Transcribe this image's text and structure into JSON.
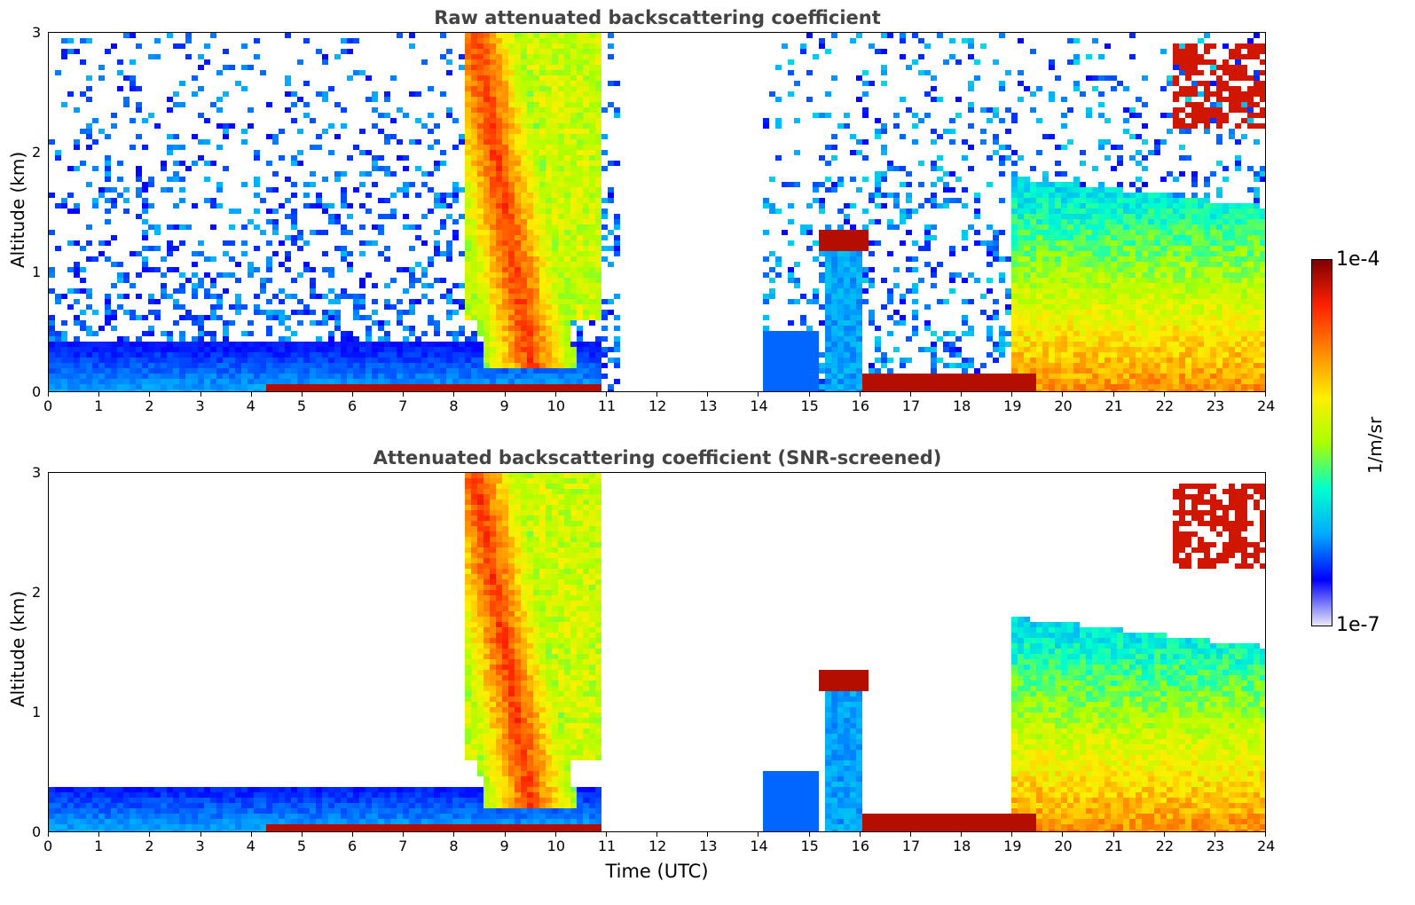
{
  "chart_data": [
    {
      "type": "heatmap",
      "title": "Raw attenuated backscattering coefficient",
      "xlabel": "",
      "ylabel": "Altitude (km)",
      "xlim": [
        0,
        24
      ],
      "ylim": [
        0,
        3
      ],
      "x_ticks": [
        "0",
        "1",
        "2",
        "3",
        "4",
        "5",
        "6",
        "7",
        "8",
        "9",
        "10",
        "11",
        "12",
        "13",
        "14",
        "15",
        "16",
        "17",
        "18",
        "19",
        "20",
        "21",
        "22",
        "23",
        "24"
      ],
      "y_ticks": [
        "0",
        "1",
        "2",
        "3"
      ],
      "data_gap_hours": [
        11.3,
        14.1
      ],
      "features": [
        {
          "desc": "surface layer",
          "x": [
            4.3,
            10.9
          ],
          "y": [
            0.0,
            0.1
          ],
          "level": "high"
        },
        {
          "desc": "falling streak",
          "x": [
            8.2,
            10.9
          ],
          "y": [
            0.2,
            3.0
          ],
          "level": "high"
        },
        {
          "desc": "cloud",
          "x": [
            15.3,
            16.0
          ],
          "y": [
            1.2,
            1.35
          ],
          "level": "high"
        },
        {
          "desc": "surface layer",
          "x": [
            16.2,
            19.3
          ],
          "y": [
            0.0,
            0.15
          ],
          "level": "high"
        },
        {
          "desc": "cloud",
          "x": [
            22.2,
            24.0
          ],
          "y": [
            2.2,
            2.9
          ],
          "level": "high"
        }
      ]
    },
    {
      "type": "heatmap",
      "title": "Attenuated backscattering coefficient (SNR-screened)",
      "xlabel": "Time (UTC)",
      "ylabel": "Altitude (km)",
      "xlim": [
        0,
        24
      ],
      "ylim": [
        0,
        3
      ],
      "x_ticks": [
        "0",
        "1",
        "2",
        "3",
        "4",
        "5",
        "6",
        "7",
        "8",
        "9",
        "10",
        "11",
        "12",
        "13",
        "14",
        "15",
        "16",
        "17",
        "18",
        "19",
        "20",
        "21",
        "22",
        "23",
        "24"
      ],
      "y_ticks": [
        "0",
        "1",
        "2",
        "3"
      ],
      "data_gap_hours": [
        11.3,
        14.1
      ]
    }
  ],
  "colorbar": {
    "label": "1/m/sr",
    "max_label": "1e-4",
    "min_label": "1e-7",
    "colors": [
      "#e8e8f8",
      "#0000ff",
      "#00aaff",
      "#00ffcc",
      "#aaff00",
      "#ffee00",
      "#ff8800",
      "#ff2200",
      "#800000"
    ]
  }
}
